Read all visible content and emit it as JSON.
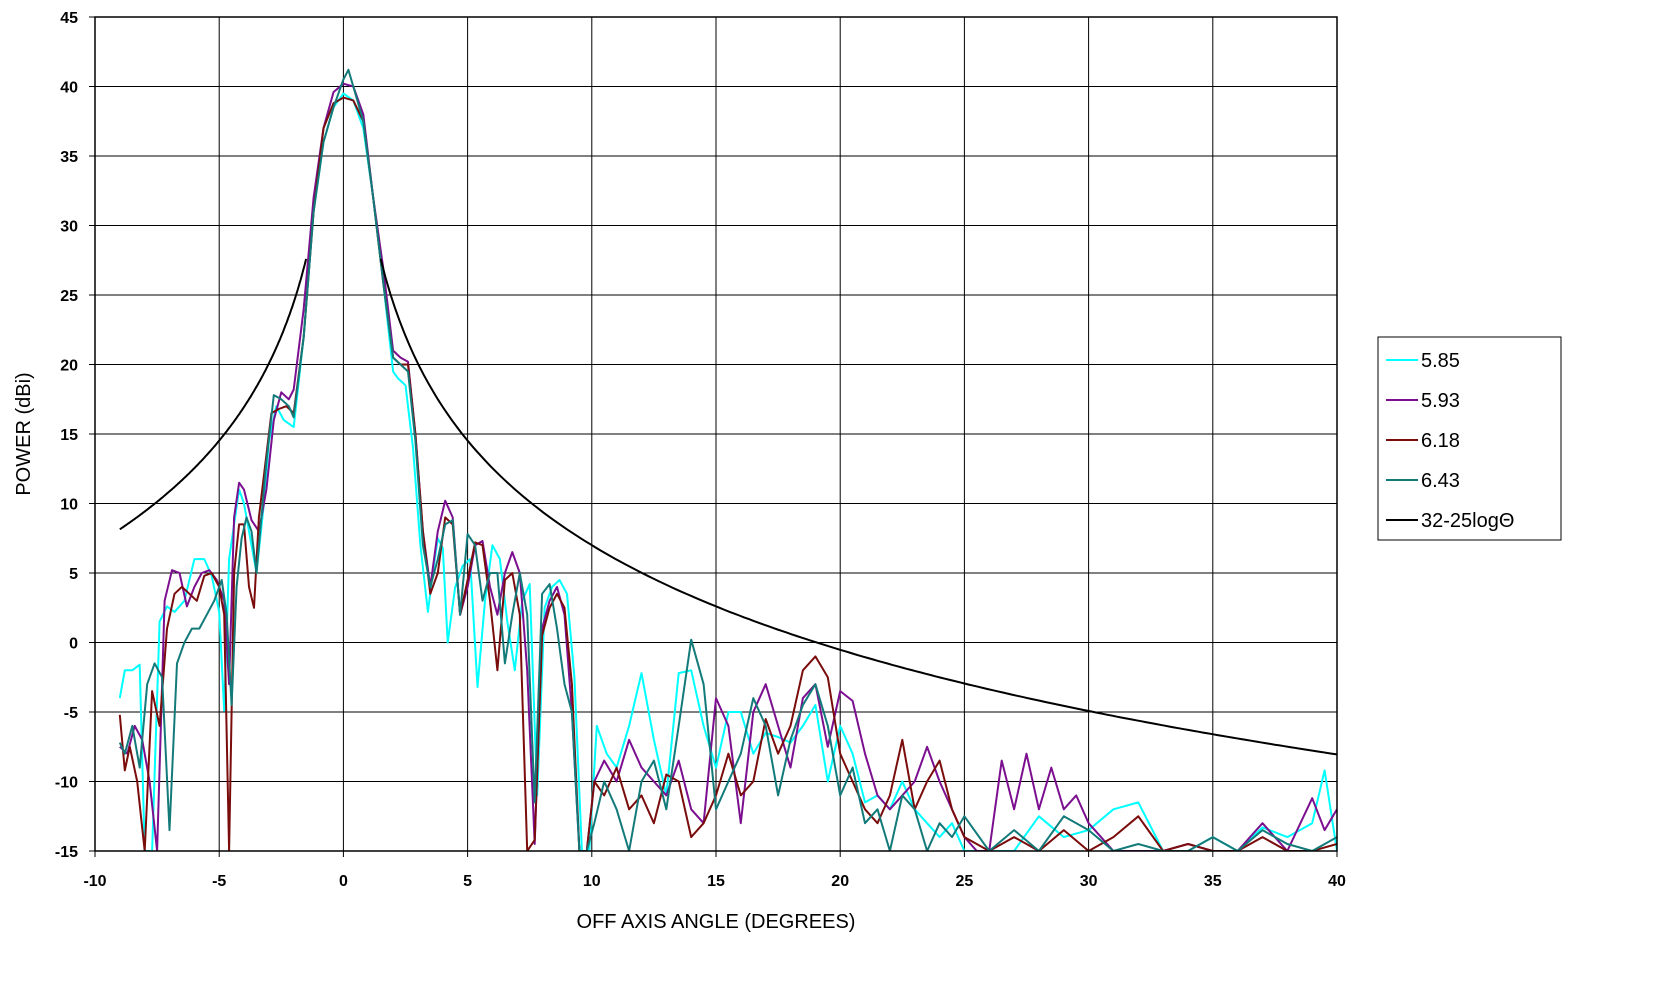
{
  "chart_data": {
    "type": "line",
    "title": "",
    "xlabel": "OFF AXIS ANGLE (DEGREES)",
    "ylabel": "POWER (dBi)",
    "xlim": [
      -10,
      40
    ],
    "ylim": [
      -15,
      45
    ],
    "xticks": [
      -10,
      -5,
      0,
      5,
      10,
      15,
      20,
      25,
      30,
      35,
      40
    ],
    "yticks": [
      -15,
      -10,
      -5,
      0,
      5,
      10,
      15,
      20,
      25,
      30,
      35,
      40,
      45
    ],
    "grid": true,
    "legend_position": "right",
    "series": [
      {
        "name": "5.85",
        "color": "#00ffff",
        "x": [
          -9,
          -8.8,
          -8.5,
          -8.2,
          -8,
          -7.7,
          -7.4,
          -7.1,
          -6.8,
          -6.4,
          -6,
          -5.6,
          -5.3,
          -5,
          -4.8,
          -4.6,
          -4.4,
          -4.2,
          -4,
          -3.8,
          -3.5,
          -3.2,
          -3,
          -2.7,
          -2.4,
          -2,
          -1.6,
          -1.2,
          -0.8,
          -0.4,
          0,
          0.4,
          0.8,
          1.2,
          1.6,
          2,
          2.2,
          2.5,
          2.8,
          3.1,
          3.4,
          3.6,
          3.8,
          4,
          4.2,
          4.5,
          4.8,
          5.1,
          5.4,
          5.7,
          6,
          6.3,
          6.6,
          6.9,
          7.2,
          7.5,
          7.8,
          8.1,
          8.4,
          8.7,
          9,
          9.3,
          9.6,
          9.9,
          10.2,
          10.6,
          11,
          11.5,
          12,
          12.5,
          13,
          13.5,
          14,
          14.5,
          15,
          15.5,
          16,
          16.5,
          17,
          17.5,
          18,
          18.5,
          19,
          19.5,
          20,
          20.5,
          21,
          21.5,
          22,
          22.5,
          23,
          23.5,
          24,
          24.5,
          25,
          26,
          27,
          28,
          29,
          30,
          31,
          32,
          33,
          34,
          35,
          36,
          37,
          38,
          39,
          39.5,
          40
        ],
        "y": [
          -4,
          -2,
          -2,
          -1.6,
          -15,
          -15,
          1.5,
          2.6,
          2.2,
          3,
          6,
          6,
          4.8,
          2.2,
          -4.9,
          6,
          8.5,
          11,
          10,
          8,
          5,
          10,
          14.5,
          17,
          16,
          15.5,
          22,
          31,
          36,
          38.5,
          39.5,
          39,
          37,
          32,
          26,
          19.5,
          19,
          18.5,
          14,
          7,
          2.2,
          5,
          7.5,
          6.8,
          0,
          4,
          5.5,
          6,
          -3.2,
          3,
          7,
          6,
          1.5,
          -2,
          3,
          4.2,
          -11,
          2.5,
          4,
          4.5,
          3.5,
          -2.5,
          -15,
          -15,
          -6,
          -8,
          -9,
          -6,
          -2.2,
          -7,
          -11,
          -2.2,
          -2,
          -6,
          -9,
          -5,
          -5,
          -8,
          -6.5,
          -6.8,
          -7.2,
          -6,
          -4.5,
          -10,
          -6,
          -8,
          -11.5,
          -11,
          -12,
          -10,
          -12,
          -13,
          -14,
          -13,
          -15,
          -15,
          -15,
          -12.5,
          -14,
          -13.5,
          -12,
          -11.5,
          -15,
          -15,
          -14,
          -15,
          -13.3,
          -14,
          -13,
          -9.2,
          -15
        ]
      },
      {
        "name": "5.93",
        "color": "#7b0f8f",
        "x": [
          -9,
          -8.7,
          -8.4,
          -8.1,
          -7.8,
          -7.5,
          -7.2,
          -6.9,
          -6.6,
          -6.3,
          -6,
          -5.7,
          -5.4,
          -5.1,
          -4.8,
          -4.6,
          -4.4,
          -4.2,
          -4,
          -3.7,
          -3.4,
          -3.1,
          -2.8,
          -2.5,
          -2.2,
          -2,
          -1.6,
          -1.2,
          -0.8,
          -0.4,
          0,
          0.4,
          0.8,
          1.2,
          1.6,
          2,
          2.3,
          2.6,
          2.9,
          3.2,
          3.5,
          3.8,
          4.1,
          4.4,
          4.7,
          5,
          5.3,
          5.6,
          5.9,
          6.2,
          6.5,
          6.8,
          7.1,
          7.4,
          7.7,
          8,
          8.3,
          8.6,
          8.9,
          9.2,
          9.5,
          9.8,
          10.1,
          10.5,
          11,
          11.5,
          12,
          12.5,
          13,
          13.5,
          14,
          14.5,
          15,
          15.5,
          16,
          16.5,
          17,
          17.5,
          18,
          18.5,
          19,
          19.5,
          20,
          20.5,
          21,
          21.5,
          22,
          22.5,
          23,
          23.5,
          24,
          24.5,
          25,
          25.5,
          26,
          26.5,
          27,
          27.5,
          28,
          28.5,
          29,
          29.5,
          30,
          30.5,
          31,
          32,
          33,
          34,
          35,
          36,
          37,
          38,
          39,
          39.5,
          40
        ],
        "y": [
          -7.5,
          -8,
          -6,
          -7,
          -10,
          -15,
          3,
          5.2,
          5,
          2.6,
          4,
          5,
          5.2,
          4.5,
          3,
          -3,
          9,
          11.5,
          11,
          8.8,
          8,
          11,
          16,
          18,
          17.5,
          18.2,
          24,
          32,
          37,
          39.6,
          40.2,
          40,
          38,
          32,
          27,
          21,
          20.5,
          20.2,
          15,
          8,
          4,
          8,
          10.2,
          9,
          2,
          4,
          7,
          7.3,
          4,
          2,
          5,
          6.5,
          5,
          -2,
          -14.5,
          1,
          3,
          4,
          2,
          -5,
          -15,
          -15,
          -10,
          -8.5,
          -10,
          -7,
          -9,
          -10,
          -11,
          -8.5,
          -12,
          -13,
          -4,
          -6,
          -13,
          -5,
          -3,
          -6,
          -9,
          -4,
          -3,
          -7.5,
          -3.5,
          -4.2,
          -8,
          -11,
          -12,
          -11,
          -10,
          -7.5,
          -10,
          -12,
          -14,
          -15,
          -15,
          -8.5,
          -12,
          -8,
          -12,
          -9,
          -12,
          -11,
          -13,
          -14,
          -15,
          -15,
          -15,
          -14.5,
          -15,
          -15,
          -13,
          -15,
          -11.2,
          -13.5,
          -12
        ]
      },
      {
        "name": "6.18",
        "color": "#7a0c0c",
        "x": [
          -9,
          -8.8,
          -8.6,
          -8.3,
          -8,
          -7.7,
          -7.4,
          -7.1,
          -6.8,
          -6.5,
          -6.2,
          -5.9,
          -5.6,
          -5.3,
          -5,
          -4.8,
          -4.6,
          -4.4,
          -4.2,
          -4,
          -3.8,
          -3.6,
          -3.4,
          -3.2,
          -2.9,
          -2.6,
          -2.3,
          -2,
          -1.6,
          -1.2,
          -0.8,
          -0.4,
          0,
          0.4,
          0.8,
          1.2,
          1.6,
          2,
          2.3,
          2.6,
          2.9,
          3.2,
          3.5,
          3.8,
          4.1,
          4.4,
          4.7,
          5,
          5.3,
          5.6,
          5.9,
          6.2,
          6.5,
          6.8,
          7.1,
          7.4,
          7.7,
          8,
          8.3,
          8.6,
          8.9,
          9.2,
          9.5,
          9.8,
          10.1,
          10.5,
          11,
          11.5,
          12,
          12.5,
          13,
          13.5,
          14,
          14.5,
          15,
          15.5,
          16,
          16.5,
          17,
          17.5,
          18,
          18.5,
          19,
          19.5,
          20,
          20.5,
          21,
          21.5,
          22,
          22.5,
          23,
          23.5,
          24,
          24.5,
          25,
          26,
          27,
          28,
          29,
          30,
          31,
          32,
          33,
          34,
          35,
          36,
          37,
          38,
          39,
          40
        ],
        "y": [
          -5.2,
          -9.2,
          -7.5,
          -10,
          -15,
          -3.5,
          -6,
          1,
          3.5,
          4,
          3.5,
          3,
          4.8,
          5,
          4,
          2,
          -15,
          5,
          8.5,
          8.5,
          4,
          2.5,
          9,
          12,
          16.5,
          16.8,
          17,
          16.5,
          22,
          31,
          37,
          38.8,
          39.2,
          39,
          37.5,
          32,
          26,
          20.5,
          20,
          20,
          15,
          8,
          3.5,
          5,
          9,
          8.5,
          2,
          4.5,
          7.2,
          7,
          3,
          -2,
          4.5,
          5,
          2,
          -15,
          -14.2,
          0.5,
          2.5,
          3.5,
          2.5,
          -3,
          -15,
          -15,
          -10,
          -11,
          -9,
          -12,
          -11,
          -13,
          -9.5,
          -10,
          -14,
          -13,
          -11,
          -8,
          -11,
          -10,
          -5.5,
          -8,
          -6,
          -2,
          -1,
          -2.5,
          -8,
          -10,
          -12,
          -13,
          -11,
          -7,
          -12,
          -10,
          -8.5,
          -12,
          -14,
          -15,
          -14,
          -15,
          -13.5,
          -15,
          -14,
          -12.5,
          -15,
          -14.5,
          -15,
          -15,
          -14,
          -15,
          -15,
          -14.5
        ]
      },
      {
        "name": "6.43",
        "color": "#137a7a",
        "x": [
          -9,
          -8.8,
          -8.5,
          -8.2,
          -7.9,
          -7.6,
          -7.3,
          -7,
          -6.7,
          -6.4,
          -6.1,
          -5.8,
          -5.5,
          -5.2,
          -4.9,
          -4.7,
          -4.5,
          -4.3,
          -4.1,
          -3.9,
          -3.7,
          -3.5,
          -3.3,
          -3.1,
          -2.8,
          -2.5,
          -2.2,
          -2,
          -1.6,
          -1.2,
          -0.8,
          -0.4,
          0,
          0.2,
          0.4,
          0.8,
          1.2,
          1.6,
          2,
          2.3,
          2.6,
          2.9,
          3.2,
          3.5,
          3.8,
          4.1,
          4.4,
          4.7,
          5,
          5.3,
          5.6,
          5.9,
          6.2,
          6.5,
          6.8,
          7.1,
          7.4,
          7.7,
          8,
          8.3,
          8.6,
          8.9,
          9.2,
          9.5,
          9.8,
          10.1,
          10.5,
          11,
          11.5,
          12,
          12.5,
          13,
          13.5,
          14,
          14.5,
          15,
          15.5,
          16,
          16.5,
          17,
          17.5,
          18,
          18.5,
          19,
          19.5,
          20,
          20.5,
          21,
          21.5,
          22,
          22.5,
          23,
          23.5,
          24,
          24.5,
          25,
          26,
          27,
          28,
          29,
          30,
          31,
          32,
          33,
          34,
          35,
          36,
          37,
          38,
          39,
          40
        ],
        "y": [
          -7.2,
          -8,
          -6,
          -9,
          -3,
          -1.5,
          -2.5,
          -13.5,
          -1.5,
          0,
          1,
          1,
          2,
          3,
          4.5,
          2,
          -4.5,
          4,
          7.5,
          9,
          8,
          5,
          9,
          13,
          17.8,
          17.5,
          17,
          16.2,
          22,
          31,
          36,
          38.5,
          40.5,
          41.2,
          40,
          37.5,
          32,
          26,
          20.5,
          20,
          19.5,
          14.5,
          7,
          4,
          6,
          8.5,
          8.8,
          2,
          7.8,
          7,
          3,
          5,
          5,
          -1.5,
          2,
          5,
          2,
          -11.5,
          3.5,
          4.2,
          1,
          -3,
          -5,
          -15,
          -15,
          -13,
          -10,
          -12,
          -15,
          -10,
          -8.5,
          -12,
          -6,
          0.2,
          -3,
          -12,
          -10,
          -8,
          -4,
          -6,
          -11,
          -7,
          -4.5,
          -3,
          -6,
          -11,
          -9,
          -13,
          -12,
          -15,
          -11,
          -12,
          -15,
          -13,
          -14,
          -12.5,
          -15,
          -13.5,
          -15,
          -12.5,
          -13.5,
          -15,
          -14.5,
          -15,
          -15,
          -14,
          -15,
          -13.5,
          -14.5,
          -15,
          -14
        ]
      },
      {
        "name": "32-25logΘ",
        "color": "#000000",
        "function": "32-25*log10(|x|)",
        "xmin_neg": -9,
        "xmax_neg": -1.5,
        "xmin_pos": 1.5,
        "xmax_pos": 40
      }
    ]
  }
}
